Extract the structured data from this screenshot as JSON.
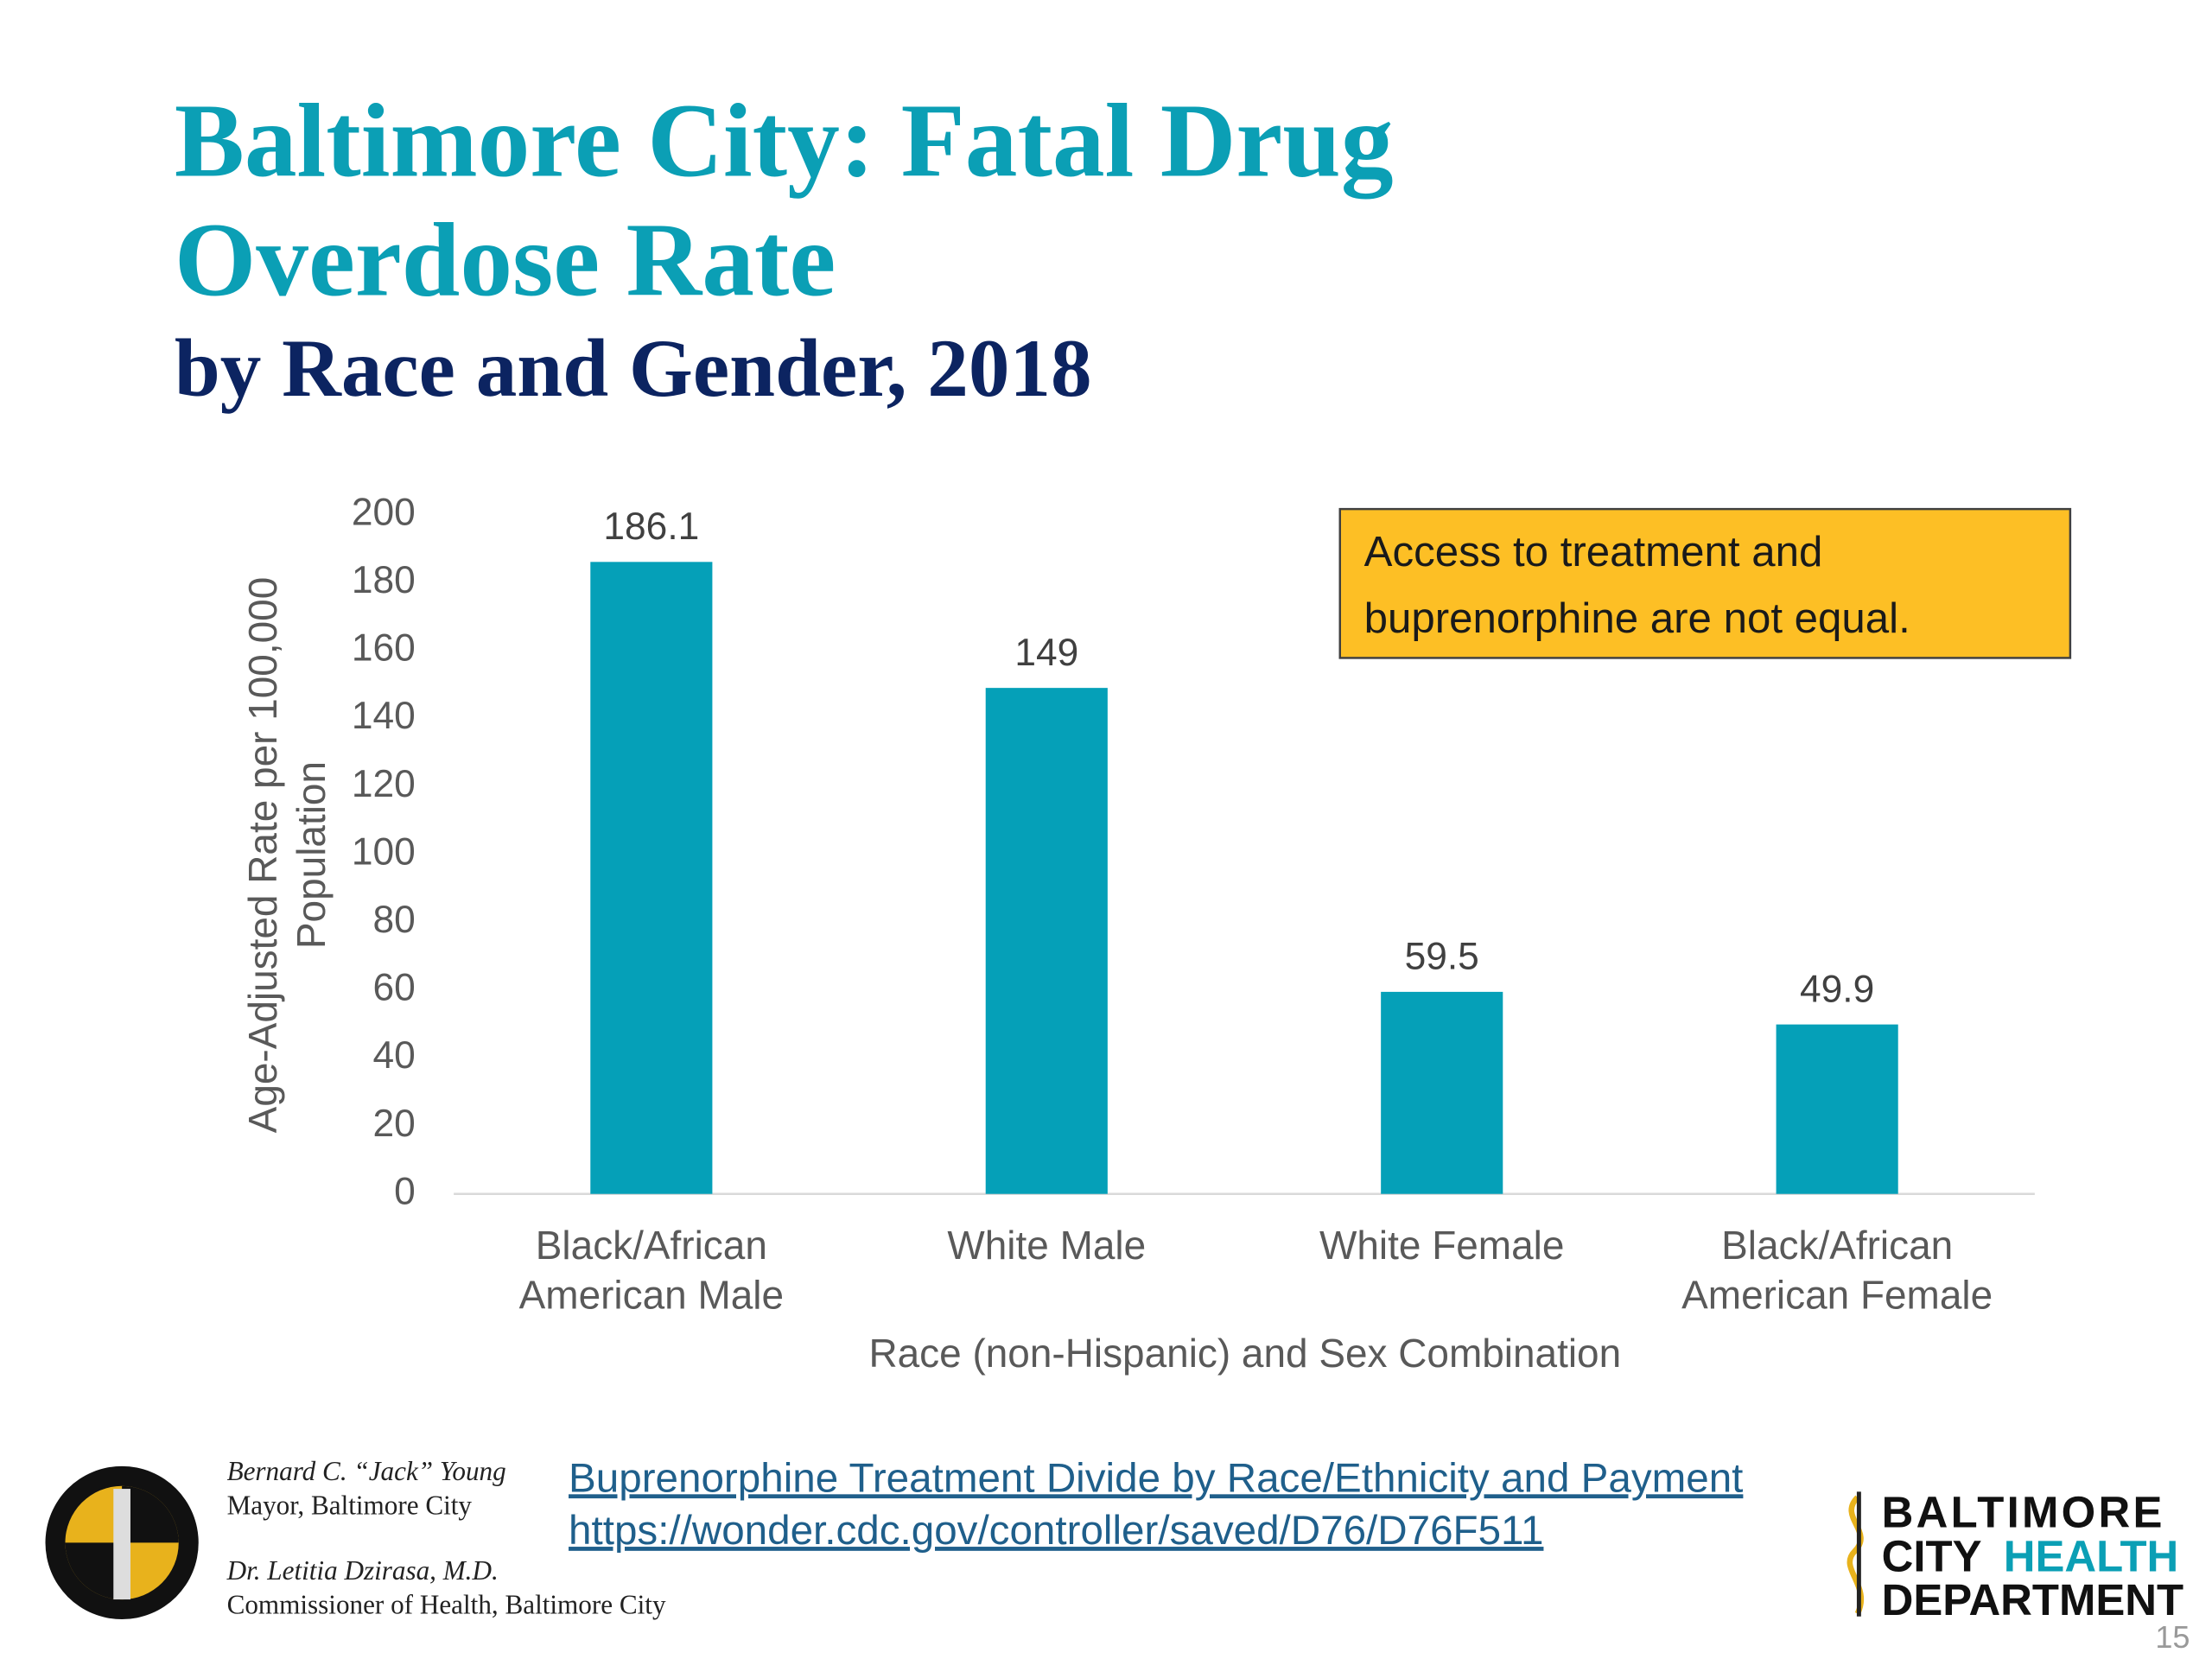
{
  "chart_data": {
    "type": "bar",
    "title": [
      "Baltimore City: Fatal Drug",
      "Overdose Rate"
    ],
    "subtitle": "by Race and Gender, 2018",
    "y_label": [
      "Age-Adjusted Rate per 100,000",
      "Population"
    ],
    "x_label": "Race (non-Hispanic) and Sex Combination",
    "categories": [
      [
        "Black/African",
        "American Male"
      ],
      [
        "White Male"
      ],
      [
        "White Female"
      ],
      [
        "Black/African",
        "American Female"
      ]
    ],
    "values": [
      186.1,
      149,
      59.5,
      49.9
    ],
    "color": "#05a0b8",
    "ylim": [
      0,
      200
    ],
    "yticks": [
      0,
      20,
      40,
      60,
      80,
      100,
      120,
      140,
      160,
      180,
      200
    ],
    "annotation": [
      "Access to treatment and",
      "buprenorphine are not equal."
    ]
  },
  "footer": {
    "mayor_name": "Bernard C. “Jack” Young",
    "mayor_title": "Mayor, Baltimore City",
    "commissioner_name": "Dr. Letitia Dzirasa, M.D.",
    "commissioner_title": "Commissioner of Health, Baltimore City",
    "links": [
      "Buprenorphine Treatment Divide by Race/Ethnicity and Payment",
      "https://wonder.cdc.gov/controller/saved/D76/D76F511"
    ],
    "logo": [
      "BALTIMORE",
      "CITY",
      "HEALTH",
      "DEPARTMENT"
    ],
    "page_number": "15"
  }
}
